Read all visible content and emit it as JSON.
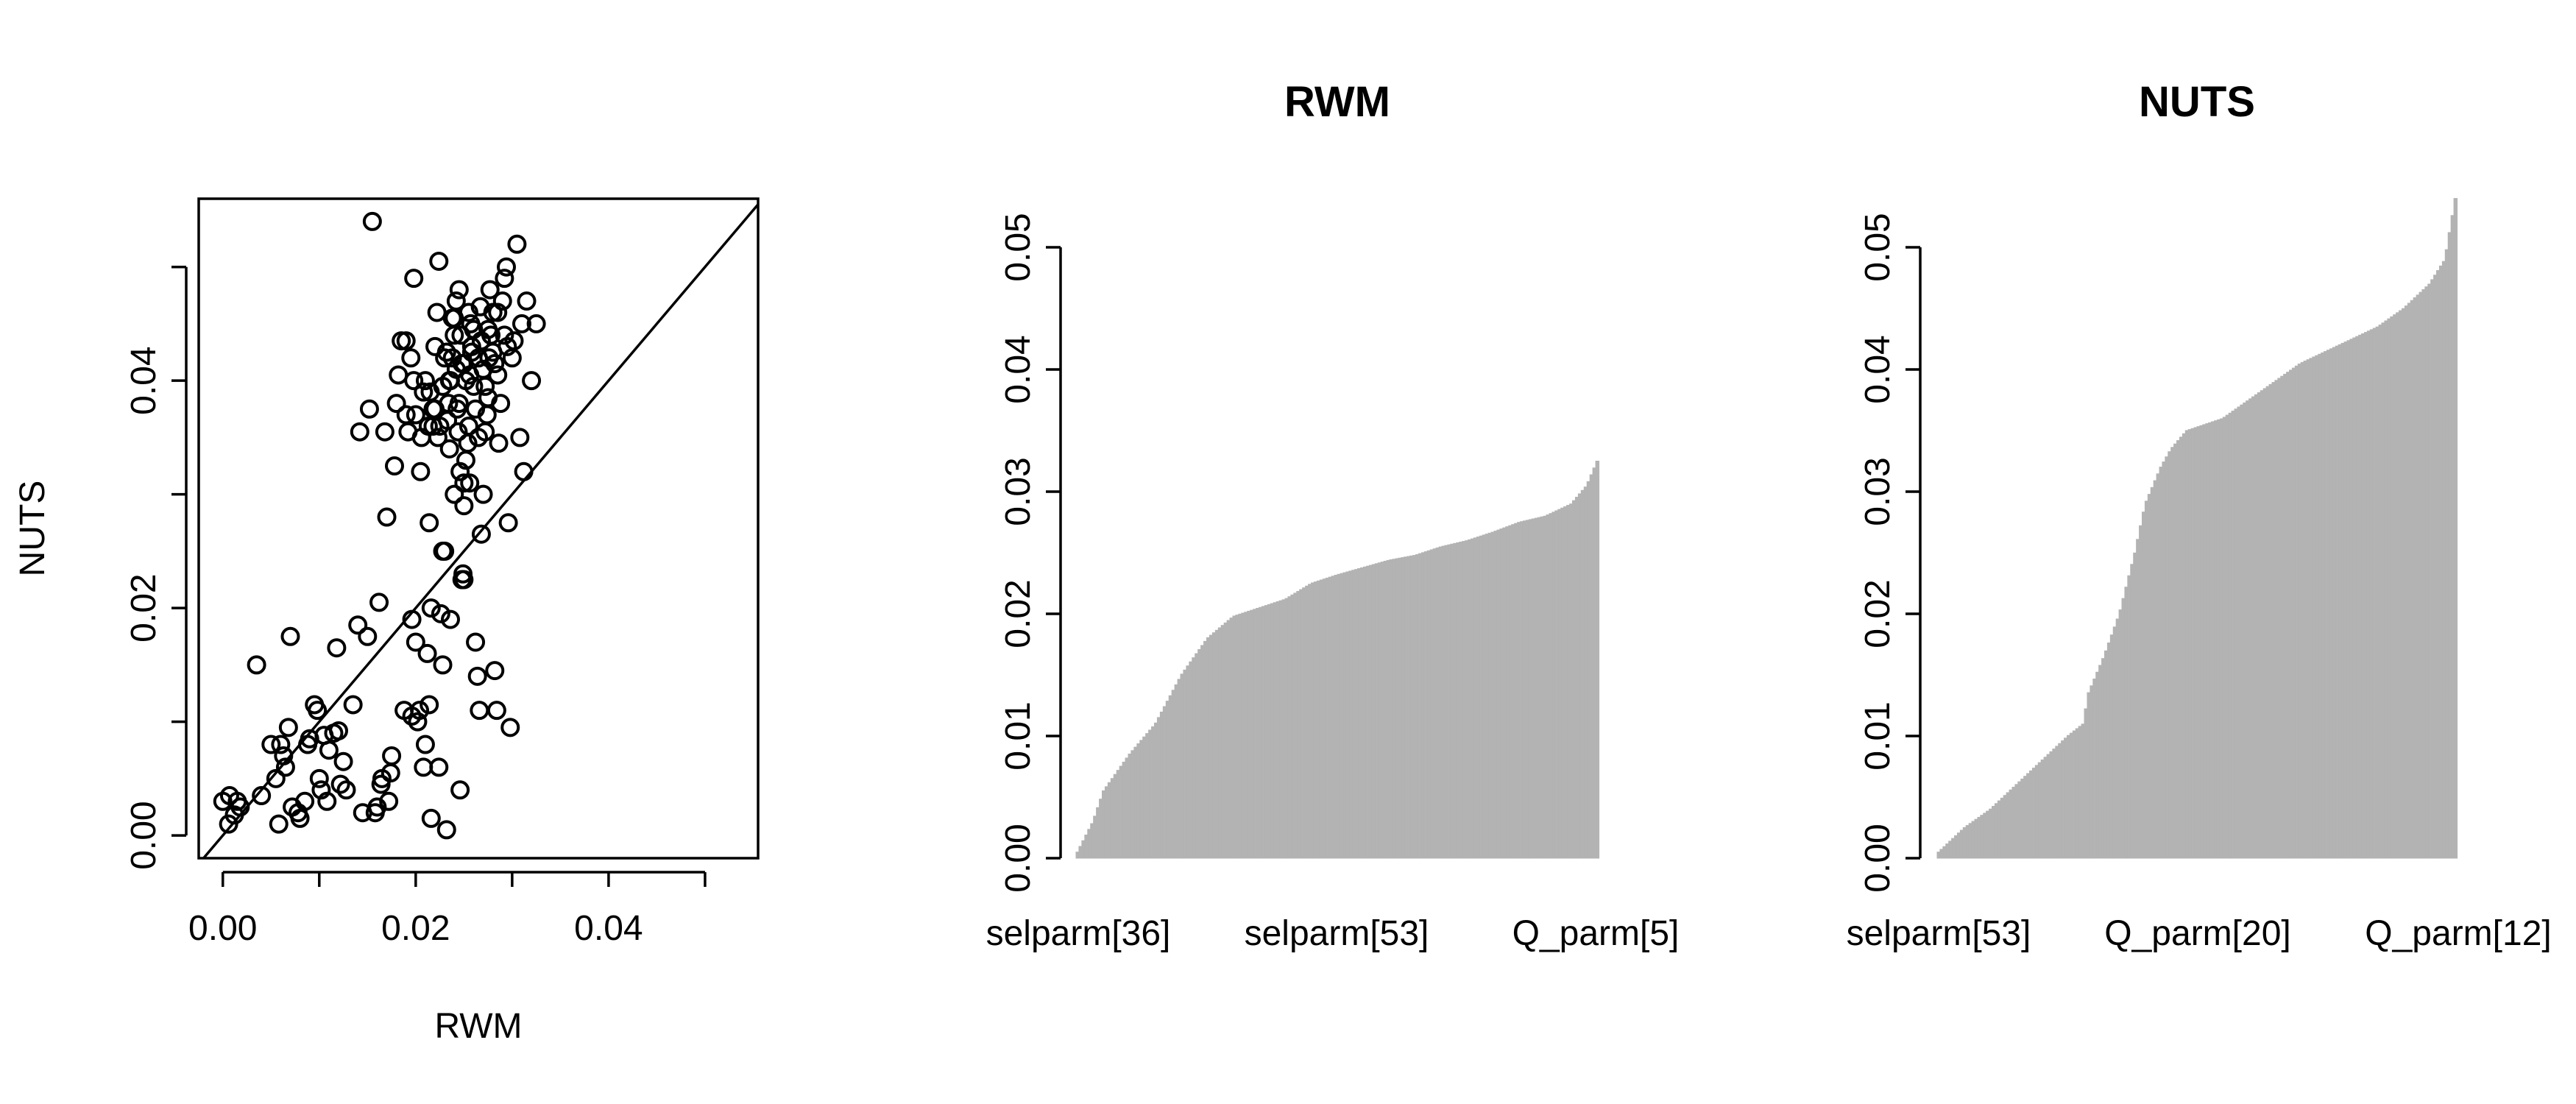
{
  "chart_data": [
    {
      "type": "scatter",
      "xlabel": "RWM",
      "ylabel": "NUTS",
      "xlim": [
        -0.0025,
        0.0555
      ],
      "ylim": [
        -0.002,
        0.056
      ],
      "xticks": [
        0.0,
        0.02,
        0.04
      ],
      "xtick_labels": [
        "0.00",
        "0.02",
        "0.04"
      ],
      "yticks": [
        0.0,
        0.02,
        0.04
      ],
      "ytick_labels": [
        "0.00",
        "0.02",
        "0.04"
      ],
      "reference_line": "y = x",
      "box": true,
      "grid": false,
      "points": [
        {
          "x": 0.0,
          "y": 0.003
        },
        {
          "x": 0.0007,
          "y": 0.0035
        },
        {
          "x": 0.0012,
          "y": 0.0018
        },
        {
          "x": 0.0015,
          "y": 0.003
        },
        {
          "x": 0.0018,
          "y": 0.0025
        },
        {
          "x": 0.0006,
          "y": 0.001
        },
        {
          "x": 0.0035,
          "y": 0.015
        },
        {
          "x": 0.004,
          "y": 0.0035
        },
        {
          "x": 0.005,
          "y": 0.008
        },
        {
          "x": 0.0055,
          "y": 0.005
        },
        {
          "x": 0.0058,
          "y": 0.001
        },
        {
          "x": 0.006,
          "y": 0.008
        },
        {
          "x": 0.0063,
          "y": 0.007
        },
        {
          "x": 0.0065,
          "y": 0.006
        },
        {
          "x": 0.0068,
          "y": 0.0095
        },
        {
          "x": 0.007,
          "y": 0.0175
        },
        {
          "x": 0.0072,
          "y": 0.0025
        },
        {
          "x": 0.0078,
          "y": 0.002
        },
        {
          "x": 0.008,
          "y": 0.0015
        },
        {
          "x": 0.0085,
          "y": 0.003
        },
        {
          "x": 0.0088,
          "y": 0.008
        },
        {
          "x": 0.009,
          "y": 0.0085
        },
        {
          "x": 0.0095,
          "y": 0.0115
        },
        {
          "x": 0.0098,
          "y": 0.011
        },
        {
          "x": 0.01,
          "y": 0.005
        },
        {
          "x": 0.0102,
          "y": 0.004
        },
        {
          "x": 0.0105,
          "y": 0.0088
        },
        {
          "x": 0.0108,
          "y": 0.003
        },
        {
          "x": 0.011,
          "y": 0.0075
        },
        {
          "x": 0.0115,
          "y": 0.009
        },
        {
          "x": 0.0118,
          "y": 0.0165
        },
        {
          "x": 0.012,
          "y": 0.0092
        },
        {
          "x": 0.0122,
          "y": 0.0045
        },
        {
          "x": 0.0125,
          "y": 0.0065
        },
        {
          "x": 0.0128,
          "y": 0.004
        },
        {
          "x": 0.0135,
          "y": 0.0115
        },
        {
          "x": 0.014,
          "y": 0.0185
        },
        {
          "x": 0.0142,
          "y": 0.0355
        },
        {
          "x": 0.0145,
          "y": 0.002
        },
        {
          "x": 0.015,
          "y": 0.0175
        },
        {
          "x": 0.0152,
          "y": 0.0375
        },
        {
          "x": 0.0155,
          "y": 0.054
        },
        {
          "x": 0.0158,
          "y": 0.002
        },
        {
          "x": 0.016,
          "y": 0.0025
        },
        {
          "x": 0.0162,
          "y": 0.0205
        },
        {
          "x": 0.0165,
          "y": 0.005
        },
        {
          "x": 0.0168,
          "y": 0.0355
        },
        {
          "x": 0.017,
          "y": 0.028
        },
        {
          "x": 0.0172,
          "y": 0.003
        },
        {
          "x": 0.0175,
          "y": 0.007
        },
        {
          "x": 0.0178,
          "y": 0.0325
        },
        {
          "x": 0.018,
          "y": 0.038
        },
        {
          "x": 0.0182,
          "y": 0.0405
        },
        {
          "x": 0.0185,
          "y": 0.0435
        },
        {
          "x": 0.0188,
          "y": 0.011
        },
        {
          "x": 0.019,
          "y": 0.037
        },
        {
          "x": 0.0192,
          "y": 0.0355
        },
        {
          "x": 0.0195,
          "y": 0.042
        },
        {
          "x": 0.0198,
          "y": 0.049
        },
        {
          "x": 0.02,
          "y": 0.017
        },
        {
          "x": 0.0202,
          "y": 0.01
        },
        {
          "x": 0.0205,
          "y": 0.032
        },
        {
          "x": 0.0206,
          "y": 0.035
        },
        {
          "x": 0.0208,
          "y": 0.006
        },
        {
          "x": 0.021,
          "y": 0.008
        },
        {
          "x": 0.0212,
          "y": 0.016
        },
        {
          "x": 0.0214,
          "y": 0.0275
        },
        {
          "x": 0.0216,
          "y": 0.0015
        },
        {
          "x": 0.0218,
          "y": 0.036
        },
        {
          "x": 0.022,
          "y": 0.0375
        },
        {
          "x": 0.0222,
          "y": 0.046
        },
        {
          "x": 0.0224,
          "y": 0.0505
        },
        {
          "x": 0.0226,
          "y": 0.0195
        },
        {
          "x": 0.0228,
          "y": 0.015
        },
        {
          "x": 0.023,
          "y": 0.025
        },
        {
          "x": 0.0232,
          "y": 0.0005
        },
        {
          "x": 0.0234,
          "y": 0.038
        },
        {
          "x": 0.0236,
          "y": 0.04
        },
        {
          "x": 0.0238,
          "y": 0.042
        },
        {
          "x": 0.024,
          "y": 0.0455
        },
        {
          "x": 0.0242,
          "y": 0.047
        },
        {
          "x": 0.0244,
          "y": 0.0355
        },
        {
          "x": 0.0246,
          "y": 0.004
        },
        {
          "x": 0.0248,
          "y": 0.0225
        },
        {
          "x": 0.0249,
          "y": 0.023
        },
        {
          "x": 0.025,
          "y": 0.031
        },
        {
          "x": 0.0252,
          "y": 0.033
        },
        {
          "x": 0.0254,
          "y": 0.0345
        },
        {
          "x": 0.0256,
          "y": 0.0405
        },
        {
          "x": 0.0258,
          "y": 0.043
        },
        {
          "x": 0.026,
          "y": 0.0445
        },
        {
          "x": 0.0262,
          "y": 0.017
        },
        {
          "x": 0.0264,
          "y": 0.014
        },
        {
          "x": 0.0266,
          "y": 0.011
        },
        {
          "x": 0.0268,
          "y": 0.0265
        },
        {
          "x": 0.027,
          "y": 0.03
        },
        {
          "x": 0.0272,
          "y": 0.0355
        },
        {
          "x": 0.0274,
          "y": 0.037
        },
        {
          "x": 0.0276,
          "y": 0.042
        },
        {
          "x": 0.0278,
          "y": 0.044
        },
        {
          "x": 0.028,
          "y": 0.046
        },
        {
          "x": 0.0282,
          "y": 0.0145
        },
        {
          "x": 0.0284,
          "y": 0.011
        },
        {
          "x": 0.0286,
          "y": 0.0345
        },
        {
          "x": 0.0288,
          "y": 0.038
        },
        {
          "x": 0.029,
          "y": 0.047
        },
        {
          "x": 0.0292,
          "y": 0.049
        },
        {
          "x": 0.0294,
          "y": 0.05
        },
        {
          "x": 0.0296,
          "y": 0.0275
        },
        {
          "x": 0.0298,
          "y": 0.0095
        },
        {
          "x": 0.03,
          "y": 0.042
        },
        {
          "x": 0.0302,
          "y": 0.0435
        },
        {
          "x": 0.0305,
          "y": 0.052
        },
        {
          "x": 0.0308,
          "y": 0.035
        },
        {
          "x": 0.031,
          "y": 0.045
        },
        {
          "x": 0.0312,
          "y": 0.032
        },
        {
          "x": 0.0315,
          "y": 0.047
        },
        {
          "x": 0.032,
          "y": 0.04
        },
        {
          "x": 0.0325,
          "y": 0.045
        },
        {
          "x": 0.023,
          "y": 0.042
        },
        {
          "x": 0.024,
          "y": 0.044
        },
        {
          "x": 0.025,
          "y": 0.0415
        },
        {
          "x": 0.026,
          "y": 0.0395
        },
        {
          "x": 0.027,
          "y": 0.041
        },
        {
          "x": 0.028,
          "y": 0.0425
        },
        {
          "x": 0.0225,
          "y": 0.036
        },
        {
          "x": 0.0215,
          "y": 0.039
        },
        {
          "x": 0.0235,
          "y": 0.034
        },
        {
          "x": 0.0245,
          "y": 0.038
        },
        {
          "x": 0.0255,
          "y": 0.036
        },
        {
          "x": 0.0265,
          "y": 0.035
        },
        {
          "x": 0.0275,
          "y": 0.0385
        },
        {
          "x": 0.0285,
          "y": 0.0405
        },
        {
          "x": 0.021,
          "y": 0.04
        },
        {
          "x": 0.022,
          "y": 0.043
        },
        {
          "x": 0.02,
          "y": 0.037
        },
        {
          "x": 0.019,
          "y": 0.0435
        },
        {
          "x": 0.0245,
          "y": 0.048
        },
        {
          "x": 0.0255,
          "y": 0.046
        },
        {
          "x": 0.0265,
          "y": 0.042
        },
        {
          "x": 0.0275,
          "y": 0.0445
        },
        {
          "x": 0.0285,
          "y": 0.046
        },
        {
          "x": 0.0295,
          "y": 0.043
        },
        {
          "x": 0.024,
          "y": 0.03
        },
        {
          "x": 0.025,
          "y": 0.029
        },
        {
          "x": 0.0235,
          "y": 0.04
        },
        {
          "x": 0.0248,
          "y": 0.0415
        },
        {
          "x": 0.0258,
          "y": 0.0425
        },
        {
          "x": 0.0268,
          "y": 0.0435
        },
        {
          "x": 0.0238,
          "y": 0.0455
        },
        {
          "x": 0.0228,
          "y": 0.0395
        },
        {
          "x": 0.0218,
          "y": 0.0375
        },
        {
          "x": 0.0208,
          "y": 0.039
        },
        {
          "x": 0.0198,
          "y": 0.04
        },
        {
          "x": 0.0262,
          "y": 0.0375
        },
        {
          "x": 0.0272,
          "y": 0.0395
        },
        {
          "x": 0.0282,
          "y": 0.0415
        },
        {
          "x": 0.0292,
          "y": 0.044
        },
        {
          "x": 0.0247,
          "y": 0.044
        },
        {
          "x": 0.0257,
          "y": 0.045
        },
        {
          "x": 0.0267,
          "y": 0.0465
        },
        {
          "x": 0.0277,
          "y": 0.048
        },
        {
          "x": 0.0232,
          "y": 0.0425
        },
        {
          "x": 0.0242,
          "y": 0.041
        },
        {
          "x": 0.0252,
          "y": 0.04
        },
        {
          "x": 0.0213,
          "y": 0.036
        },
        {
          "x": 0.0223,
          "y": 0.035
        },
        {
          "x": 0.0233,
          "y": 0.0365
        },
        {
          "x": 0.0243,
          "y": 0.0375
        },
        {
          "x": 0.0204,
          "y": 0.011
        },
        {
          "x": 0.0214,
          "y": 0.0115
        },
        {
          "x": 0.0224,
          "y": 0.006
        },
        {
          "x": 0.0196,
          "y": 0.0105
        },
        {
          "x": 0.0174,
          "y": 0.0055
        },
        {
          "x": 0.0164,
          "y": 0.0045
        },
        {
          "x": 0.025,
          "y": 0.0225
        },
        {
          "x": 0.0246,
          "y": 0.032
        },
        {
          "x": 0.0256,
          "y": 0.031
        },
        {
          "x": 0.0196,
          "y": 0.019
        },
        {
          "x": 0.0216,
          "y": 0.02
        },
        {
          "x": 0.0236,
          "y": 0.019
        },
        {
          "x": 0.0228,
          "y": 0.025
        }
      ]
    },
    {
      "type": "bar",
      "title": "RWM",
      "ylim": [
        0,
        0.05
      ],
      "yticks": [
        0.0,
        0.01,
        0.02,
        0.03,
        0.04,
        0.05
      ],
      "ytick_labels": [
        "0.00",
        "0.01",
        "0.02",
        "0.03",
        "0.04",
        "0.05"
      ],
      "xtick_labels": [
        "selparm[36]",
        "selparm[53]",
        "Q_parm[5]"
      ],
      "bar_count": 180,
      "sorted_ascending": true,
      "bar_color": "#b3b3b3",
      "profile": [
        {
          "rank": 0.0,
          "value": 0.0005
        },
        {
          "rank": 0.03,
          "value": 0.003
        },
        {
          "rank": 0.05,
          "value": 0.0055
        },
        {
          "rank": 0.1,
          "value": 0.0085
        },
        {
          "rank": 0.15,
          "value": 0.011
        },
        {
          "rank": 0.2,
          "value": 0.015
        },
        {
          "rank": 0.25,
          "value": 0.018
        },
        {
          "rank": 0.3,
          "value": 0.0198
        },
        {
          "rank": 0.35,
          "value": 0.0205
        },
        {
          "rank": 0.4,
          "value": 0.0212
        },
        {
          "rank": 0.45,
          "value": 0.0225
        },
        {
          "rank": 0.5,
          "value": 0.0232
        },
        {
          "rank": 0.55,
          "value": 0.0238
        },
        {
          "rank": 0.6,
          "value": 0.0244
        },
        {
          "rank": 0.65,
          "value": 0.0248
        },
        {
          "rank": 0.7,
          "value": 0.0255
        },
        {
          "rank": 0.75,
          "value": 0.026
        },
        {
          "rank": 0.8,
          "value": 0.0267
        },
        {
          "rank": 0.85,
          "value": 0.0275
        },
        {
          "rank": 0.9,
          "value": 0.028
        },
        {
          "rank": 0.95,
          "value": 0.029
        },
        {
          "rank": 0.98,
          "value": 0.0305
        },
        {
          "rank": 1.0,
          "value": 0.0325
        }
      ]
    },
    {
      "type": "bar",
      "title": "NUTS",
      "ylim": [
        0,
        0.05
      ],
      "yticks": [
        0.0,
        0.01,
        0.02,
        0.03,
        0.04,
        0.05
      ],
      "ytick_labels": [
        "0.00",
        "0.01",
        "0.02",
        "0.03",
        "0.04",
        "0.05"
      ],
      "xtick_labels": [
        "selparm[53]",
        "Q_parm[20]",
        "Q_parm[12]"
      ],
      "bar_count": 180,
      "sorted_ascending": true,
      "bar_color": "#b3b3b3",
      "profile": [
        {
          "rank": 0.0,
          "value": 0.0005
        },
        {
          "rank": 0.05,
          "value": 0.0025
        },
        {
          "rank": 0.1,
          "value": 0.004
        },
        {
          "rank": 0.15,
          "value": 0.006
        },
        {
          "rank": 0.2,
          "value": 0.008
        },
        {
          "rank": 0.25,
          "value": 0.01
        },
        {
          "rank": 0.28,
          "value": 0.011
        },
        {
          "rank": 0.29,
          "value": 0.0135
        },
        {
          "rank": 0.32,
          "value": 0.0165
        },
        {
          "rank": 0.35,
          "value": 0.02
        },
        {
          "rank": 0.38,
          "value": 0.025
        },
        {
          "rank": 0.4,
          "value": 0.029
        },
        {
          "rank": 0.43,
          "value": 0.032
        },
        {
          "rank": 0.45,
          "value": 0.0335
        },
        {
          "rank": 0.48,
          "value": 0.035
        },
        {
          "rank": 0.55,
          "value": 0.036
        },
        {
          "rank": 0.6,
          "value": 0.0375
        },
        {
          "rank": 0.65,
          "value": 0.039
        },
        {
          "rank": 0.7,
          "value": 0.0405
        },
        {
          "rank": 0.75,
          "value": 0.0415
        },
        {
          "rank": 0.8,
          "value": 0.0425
        },
        {
          "rank": 0.85,
          "value": 0.0435
        },
        {
          "rank": 0.9,
          "value": 0.045
        },
        {
          "rank": 0.95,
          "value": 0.047
        },
        {
          "rank": 0.98,
          "value": 0.049
        },
        {
          "rank": 1.0,
          "value": 0.054
        }
      ]
    }
  ]
}
